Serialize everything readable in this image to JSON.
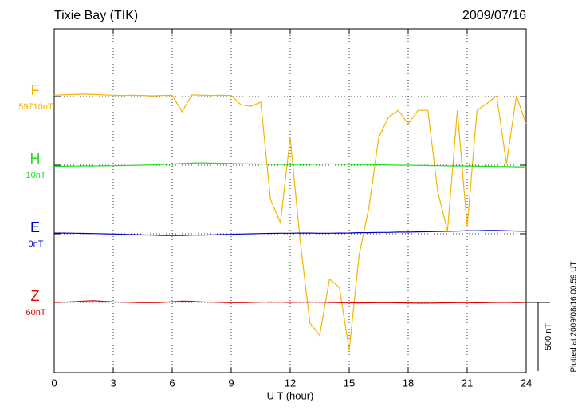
{
  "chart_data": {
    "type": "line",
    "title": "Tixie Bay (TIK)",
    "date": "2009/07/16",
    "x_label": "U T (hour)",
    "note": "Plotted at 2009/08/16 00:59 UT",
    "xlim": [
      0,
      24
    ],
    "xticks": [
      0,
      3,
      6,
      9,
      12,
      15,
      18,
      21,
      24
    ],
    "grid": true,
    "scale_bar": {
      "value": 500,
      "label": "500 nT"
    },
    "x": [
      0,
      0.5,
      1,
      1.5,
      2,
      2.5,
      3,
      3.5,
      4,
      4.5,
      5,
      5.5,
      6,
      6.5,
      7,
      7.5,
      8,
      8.5,
      9,
      9.5,
      10,
      10.5,
      11,
      11.5,
      12,
      12.5,
      13,
      13.5,
      14,
      14.5,
      15,
      15.5,
      16,
      16.5,
      17,
      17.5,
      18,
      18.5,
      19,
      19.5,
      20,
      20.5,
      21,
      21.5,
      22,
      22.5,
      23,
      23.5,
      24
    ],
    "series": [
      {
        "name": "F",
        "baseline_label": "59710nT",
        "color": "#f5b400",
        "values": [
          10,
          12,
          15,
          18,
          15,
          12,
          10,
          8,
          10,
          8,
          5,
          8,
          10,
          -110,
          12,
          10,
          8,
          10,
          8,
          -60,
          -70,
          -40,
          -750,
          -920,
          -300,
          -1040,
          -1650,
          -1740,
          -1330,
          -1390,
          -1850,
          -1160,
          -810,
          -300,
          -150,
          -100,
          -200,
          -100,
          -100,
          -690,
          -980,
          -100,
          -950,
          -100,
          -50,
          5,
          -490,
          5,
          -200
        ]
      },
      {
        "name": "H",
        "baseline_label": "10nT",
        "color": "#22dd22",
        "values": [
          -8,
          -8,
          -7,
          -6,
          -6,
          -5,
          -4,
          -3,
          -2,
          0,
          2,
          5,
          8,
          12,
          15,
          17,
          15,
          14,
          12,
          10,
          10,
          8,
          8,
          6,
          5,
          5,
          6,
          8,
          10,
          8,
          6,
          5,
          4,
          3,
          2,
          0,
          0,
          -2,
          -3,
          -4,
          -5,
          -6,
          -6,
          -8,
          -8,
          -10,
          -10,
          -12,
          -12
        ]
      },
      {
        "name": "E",
        "baseline_label": "0nT",
        "color": "#0000cc",
        "values": [
          5,
          5,
          4,
          3,
          2,
          0,
          -2,
          -4,
          -6,
          -8,
          -10,
          -12,
          -12,
          -12,
          -10,
          -10,
          -8,
          -6,
          -4,
          -2,
          0,
          2,
          3,
          4,
          4,
          5,
          5,
          4,
          4,
          5,
          6,
          8,
          8,
          10,
          10,
          12,
          12,
          14,
          15,
          16,
          18,
          20,
          22,
          22,
          24,
          24,
          22,
          20,
          18
        ]
      },
      {
        "name": "Z",
        "baseline_label": "60nT",
        "color": "#dd0000",
        "values": [
          0,
          2,
          5,
          10,
          12,
          8,
          4,
          2,
          0,
          -2,
          -2,
          0,
          5,
          10,
          8,
          4,
          2,
          0,
          -2,
          -2,
          0,
          2,
          3,
          2,
          0,
          2,
          3,
          2,
          0,
          -2,
          -2,
          -4,
          -3,
          -2,
          -2,
          -3,
          -4,
          -5,
          -5,
          -4,
          -3,
          -2,
          -2,
          -3,
          -2,
          0,
          0,
          -2,
          0
        ]
      }
    ]
  }
}
